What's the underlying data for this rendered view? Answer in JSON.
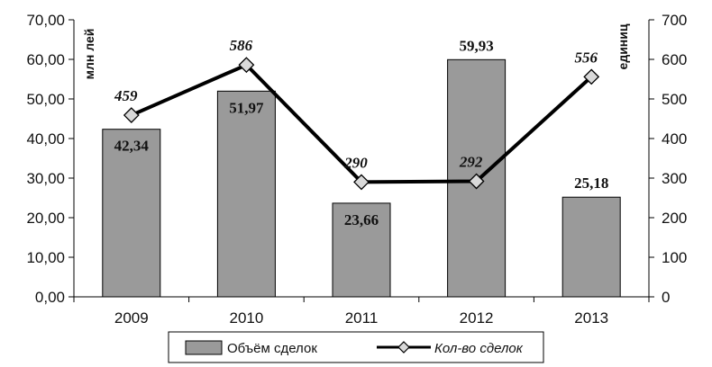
{
  "chart_data": {
    "type": "bar",
    "categories": [
      "2009",
      "2010",
      "2011",
      "2012",
      "2013"
    ],
    "series": [
      {
        "name": "Объём сделок",
        "type": "bar",
        "axis": "left",
        "values": [
          42.34,
          51.97,
          23.66,
          59.93,
          25.18
        ],
        "labels": [
          "42,34",
          "51,97",
          "23,66",
          "59,93",
          "25,18"
        ],
        "color": "#9a9a9a"
      },
      {
        "name": "Кол-во сделок",
        "type": "line",
        "axis": "right",
        "marker": "diamond",
        "values": [
          459,
          586,
          290,
          292,
          556
        ],
        "labels": [
          "459",
          "586",
          "290",
          "292",
          "556"
        ],
        "color": "#000000"
      }
    ],
    "y_left": {
      "label": "млн лей",
      "lim": [
        0,
        70
      ],
      "ticks": [
        "0,00",
        "10,00",
        "20,00",
        "30,00",
        "40,00",
        "50,00",
        "60,00",
        "70,00"
      ]
    },
    "y_right": {
      "label": "единиц",
      "lim": [
        0,
        700
      ],
      "ticks": [
        "0",
        "100",
        "200",
        "300",
        "400",
        "500",
        "600",
        "700"
      ]
    },
    "grid": false,
    "legend": "bottom"
  }
}
